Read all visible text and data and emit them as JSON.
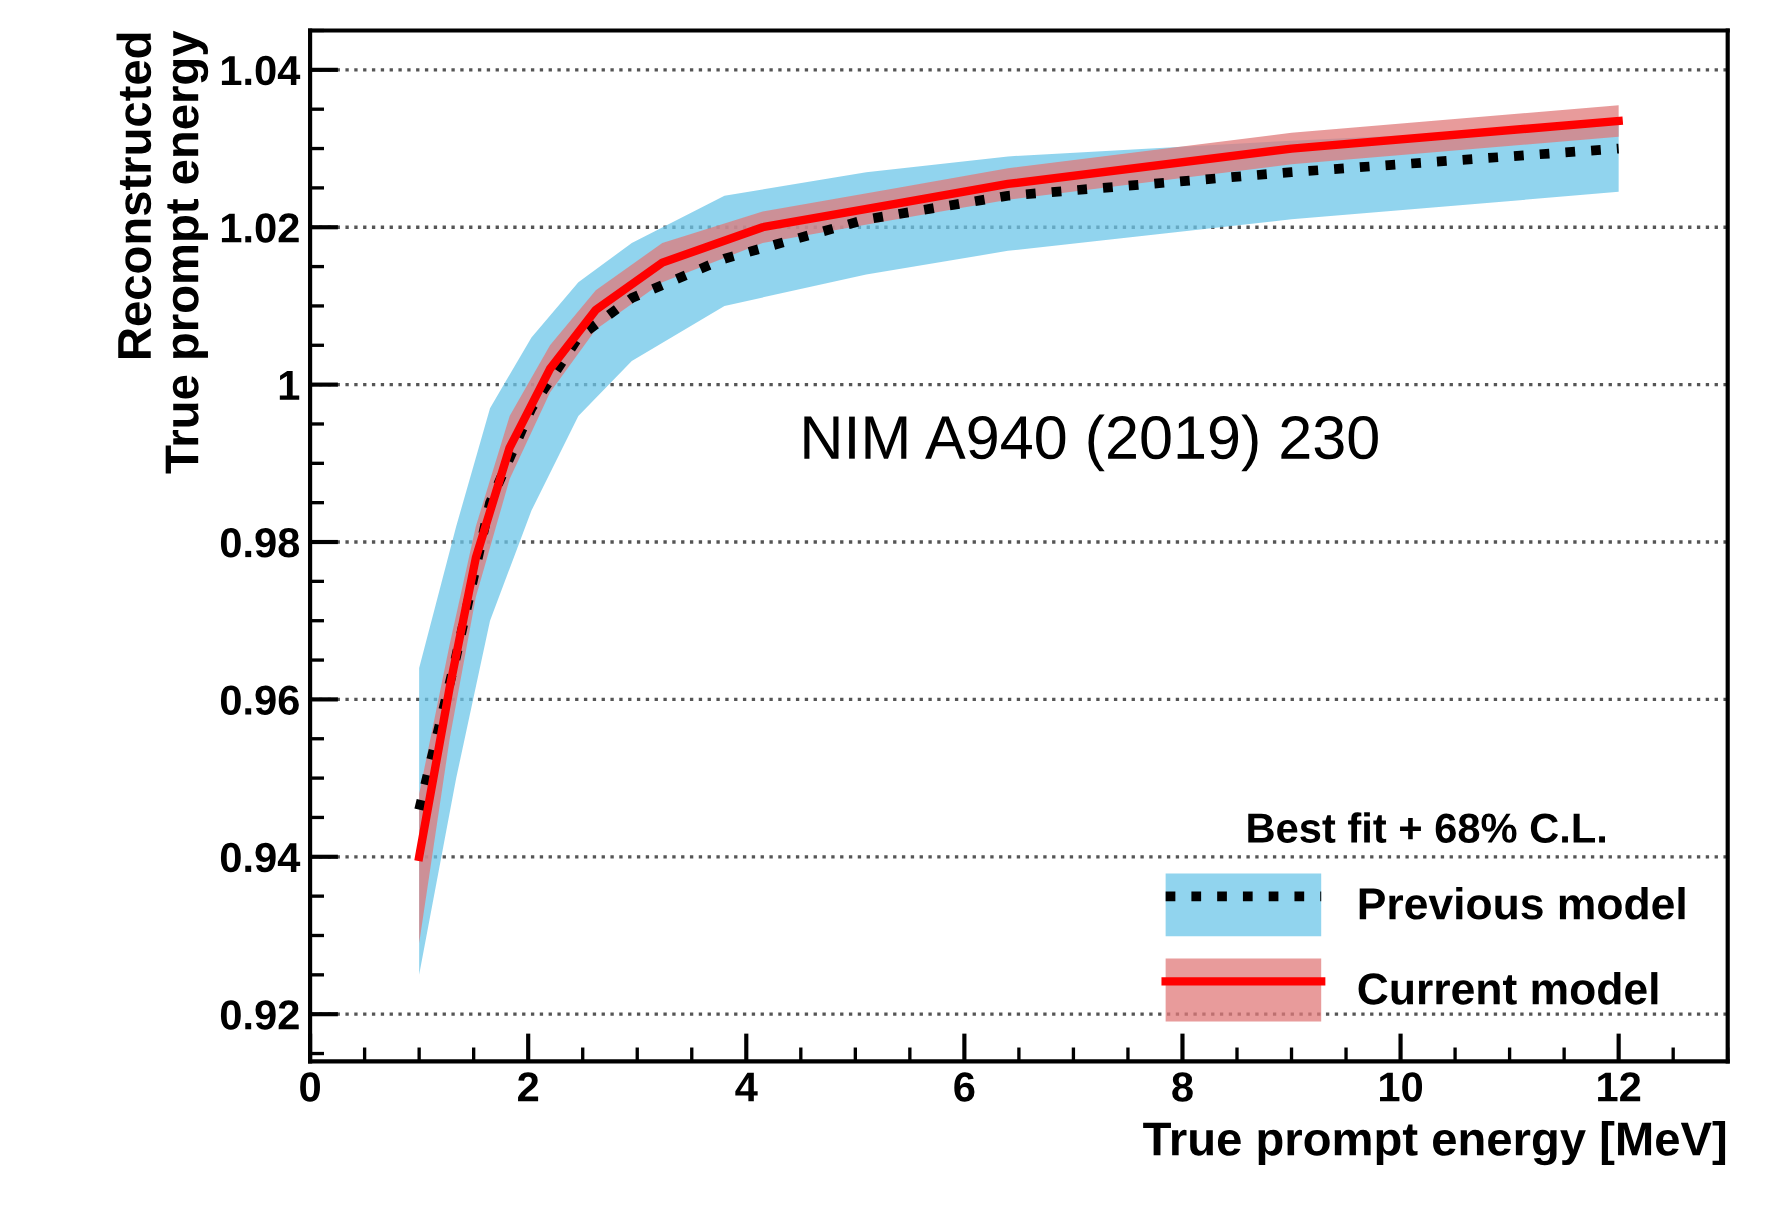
{
  "chart_data": {
    "type": "line",
    "xlabel": "True prompt energy [MeV]",
    "ylabel": "Reconstructed\nTrue prompt energy",
    "legend_title": "Best fit + 68% C.L.",
    "annotations": [
      "NIM A940 (2019) 230"
    ],
    "xlim": [
      0,
      13
    ],
    "xticks": [
      0,
      2,
      4,
      6,
      8,
      10,
      12
    ],
    "ylim": [
      0.914,
      1.045
    ],
    "yticks": [
      0.92,
      0.94,
      0.96,
      0.98,
      1,
      1.02,
      1.04
    ],
    "grid": "y",
    "legend": "bottom right",
    "series": [
      {
        "name": "Previous model",
        "color": "#000000",
        "line_style": "dotted",
        "x": [
          1.0,
          1.34,
          1.65,
          2.03,
          2.46,
          2.95,
          3.8,
          5.1,
          6.4,
          9.0,
          12.0
        ],
        "values": [
          0.946,
          0.9655,
          0.985,
          0.997,
          1.006,
          1.011,
          1.016,
          1.021,
          1.024,
          1.027,
          1.03
        ],
        "lower": [
          0.925,
          0.95,
          0.97,
          0.984,
          0.996,
          1.003,
          1.01,
          1.014,
          1.017,
          1.021,
          1.0245
        ],
        "upper": [
          0.964,
          0.982,
          0.997,
          1.006,
          1.013,
          1.018,
          1.024,
          1.027,
          1.029,
          1.031,
          1.033
        ]
      },
      {
        "name": "Current model",
        "color": "#ff0000",
        "line_style": "solid",
        "x": [
          1.0,
          1.28,
          1.52,
          1.83,
          2.2,
          2.62,
          3.23,
          4.15,
          5.38,
          6.4,
          9.0,
          12.0
        ],
        "values": [
          0.94,
          0.9615,
          0.978,
          0.992,
          1.002,
          1.0095,
          1.0155,
          1.02,
          1.023,
          1.0255,
          1.03,
          1.0335
        ],
        "lower": [
          0.929,
          0.955,
          0.973,
          0.988,
          0.999,
          1.007,
          1.013,
          1.018,
          1.021,
          1.0235,
          1.028,
          1.0315
        ],
        "upper": [
          0.948,
          0.967,
          0.982,
          0.996,
          1.005,
          1.012,
          1.018,
          1.022,
          1.025,
          1.0275,
          1.032,
          1.0355
        ]
      }
    ]
  }
}
